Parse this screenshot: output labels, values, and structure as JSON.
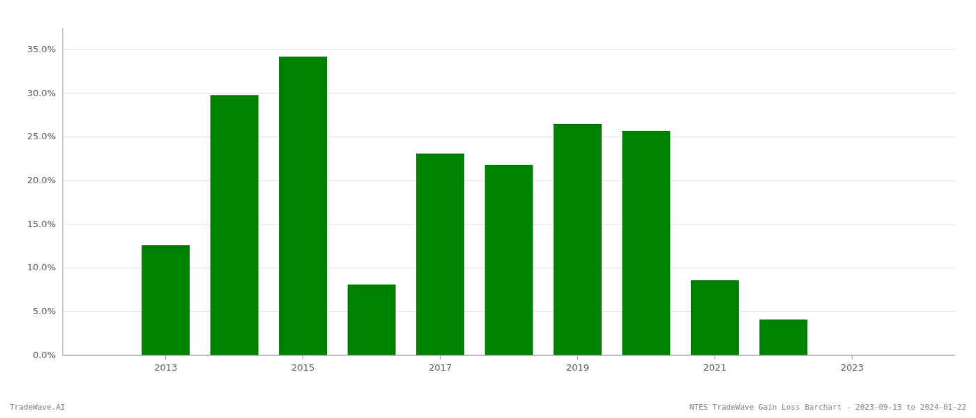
{
  "chart_data": {
    "type": "bar",
    "x": [
      2013,
      2014,
      2015,
      2016,
      2017,
      2018,
      2019,
      2020,
      2021,
      2022,
      2023
    ],
    "values": [
      0.126,
      0.298,
      0.342,
      0.081,
      0.231,
      0.218,
      0.265,
      0.257,
      0.086,
      0.041,
      0.0
    ],
    "color": "#008000",
    "xlim": [
      2011.5,
      2024.5
    ],
    "xticks": [
      2013,
      2015,
      2017,
      2019,
      2021,
      2023
    ],
    "ylim": [
      0,
      0.375
    ],
    "yticks": [
      {
        "value": 0.0,
        "label": "0.0%"
      },
      {
        "value": 0.05,
        "label": "5.0%"
      },
      {
        "value": 0.1,
        "label": "10.0%"
      },
      {
        "value": 0.15,
        "label": "15.0%"
      },
      {
        "value": 0.2,
        "label": "20.0%"
      },
      {
        "value": 0.25,
        "label": "25.0%"
      },
      {
        "value": 0.3,
        "label": "30.0%"
      },
      {
        "value": 0.35,
        "label": "35.0%"
      }
    ],
    "grid": true,
    "annotations": [
      "TradeWave.AI",
      "NTES TradeWave Gain Loss Barchart - 2023-09-13 to 2024-01-22"
    ]
  }
}
